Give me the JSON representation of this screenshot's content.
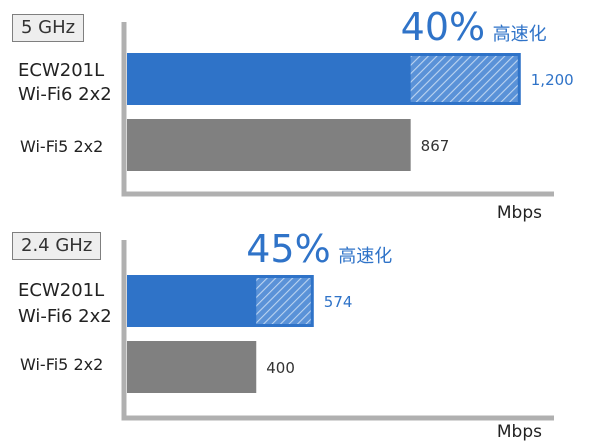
{
  "chart_data": [
    {
      "type": "bar",
      "orientation": "horizontal",
      "band": "5 GHz",
      "categories": [
        [
          "ECW201L",
          "Wi-Fi6 2x2"
        ],
        [
          "Wi-Fi5 2x2"
        ]
      ],
      "values": [
        1200,
        867
      ],
      "value_labels": [
        "1,200",
        "867"
      ],
      "baseline": 867,
      "headline": {
        "pct": "40%",
        "text": "高速化"
      },
      "xlabel": "Mbps",
      "xlim": [
        0,
        1240
      ],
      "colors": [
        "#2f73c8",
        "#808080"
      ]
    },
    {
      "type": "bar",
      "orientation": "horizontal",
      "band": "2.4 GHz",
      "categories": [
        [
          "ECW201L",
          "Wi-Fi6 2x2"
        ],
        [
          "Wi-Fi5 2x2"
        ]
      ],
      "values": [
        574,
        400
      ],
      "value_labels": [
        "574",
        "400"
      ],
      "baseline": 400,
      "headline": {
        "pct": "45%",
        "text": "高速化"
      },
      "xlabel": "Mbps",
      "xlim": [
        0,
        1240
      ],
      "colors": [
        "#2f73c8",
        "#808080"
      ]
    }
  ]
}
